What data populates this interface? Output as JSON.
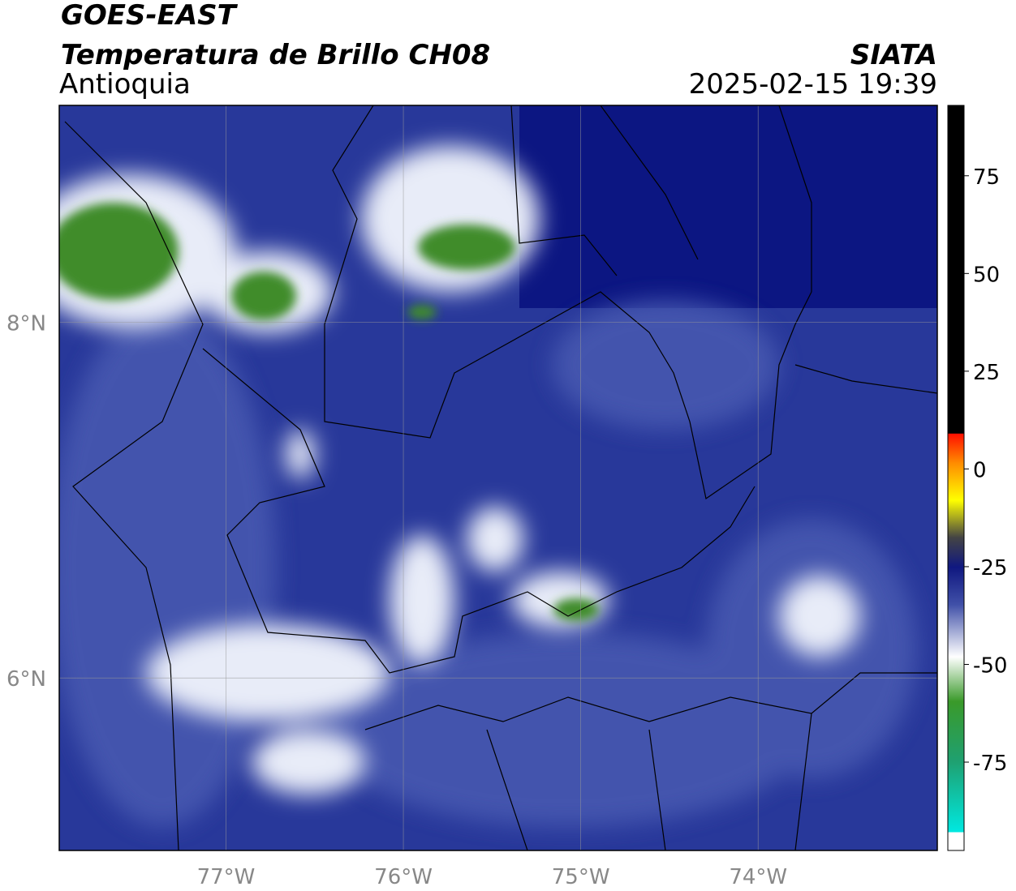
{
  "header": {
    "title": "GOES-EAST",
    "subtitle": "Temperatura de Brillo CH08",
    "region": "Antioquia",
    "source": "SIATA",
    "datetime": "2025-02-15 19:39"
  },
  "map": {
    "xlim": [
      -77.94,
      -72.99
    ],
    "ylim": [
      5.03,
      9.22
    ],
    "xticks": [
      {
        "value": -77,
        "label": "77°W"
      },
      {
        "value": -76,
        "label": "76°W"
      },
      {
        "value": -75,
        "label": "75°W"
      },
      {
        "value": -74,
        "label": "74°W"
      }
    ],
    "yticks": [
      {
        "value": 8,
        "label": "8°N"
      },
      {
        "value": 6,
        "label": "6°N"
      }
    ],
    "grid": true
  },
  "colorbar": {
    "lim": [
      -97.6,
      93
    ],
    "ticks": [
      75,
      50,
      25,
      0,
      -25,
      -50,
      -75
    ]
  }
}
